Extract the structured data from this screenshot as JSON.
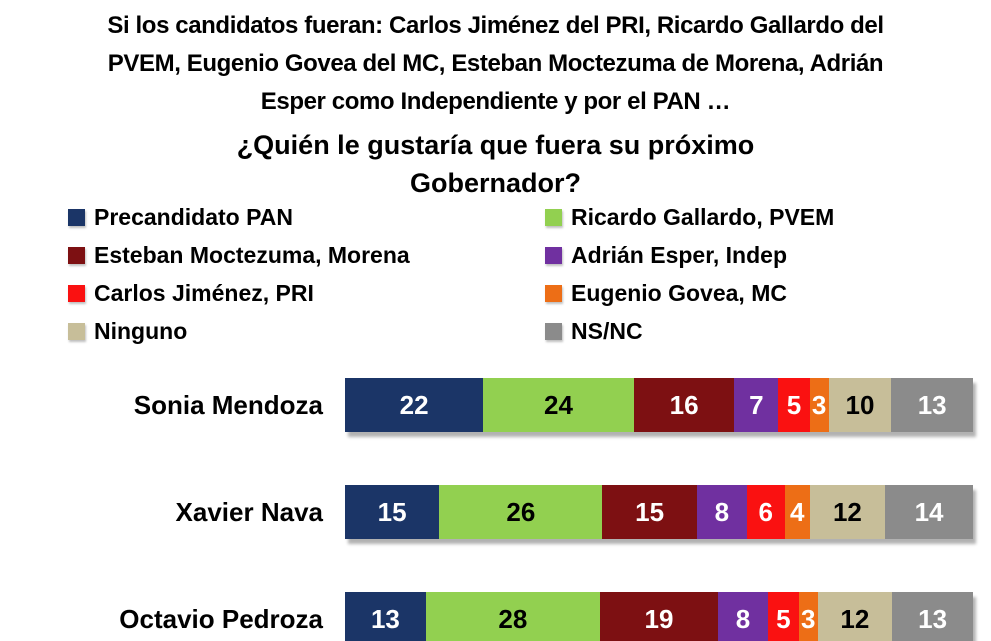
{
  "title": {
    "lines": [
      "Si los candidatos fueran: Carlos Jiménez del PRI, Ricardo Gallardo del",
      "PVEM, Eugenio Govea del MC, Esteban Moctezuma de Morena, Adrián",
      "Esper como Independiente y por el PAN …"
    ]
  },
  "question": {
    "lines": [
      "¿Quién le gustaría que fuera su próximo",
      "Gobernador?"
    ]
  },
  "chart_data": {
    "type": "bar",
    "orientation": "horizontal",
    "stacked": true,
    "title": "¿Quién le gustaría que fuera su próximo Gobernador?",
    "categories": [
      "Sonia Mendoza",
      "Xavier Nava",
      "Octavio Pedroza"
    ],
    "series": [
      {
        "name": "Precandidato PAN",
        "color": "#1B3567",
        "value_text_color": "#FFFFFF",
        "values": [
          22,
          15,
          13
        ]
      },
      {
        "name": "Ricardo Gallardo, PVEM",
        "color": "#92D050",
        "value_text_color": "#000000",
        "values": [
          24,
          26,
          28
        ]
      },
      {
        "name": "Esteban Moctezuma, Morena",
        "color": "#7D1012",
        "value_text_color": "#FFFFFF",
        "values": [
          16,
          15,
          19
        ]
      },
      {
        "name": "Adrián Esper, Indep",
        "color": "#7030A0",
        "value_text_color": "#FFFFFF",
        "values": [
          7,
          8,
          8
        ]
      },
      {
        "name": "Carlos Jiménez, PRI",
        "color": "#FA1111",
        "value_text_color": "#FFFFFF",
        "values": [
          5,
          6,
          5
        ]
      },
      {
        "name": "Eugenio Govea, MC",
        "color": "#ED6E16",
        "value_text_color": "#FFFFFF",
        "values": [
          3,
          4,
          3
        ]
      },
      {
        "name": "Ninguno",
        "color": "#C7BE99",
        "value_text_color": "#000000",
        "values": [
          10,
          12,
          12
        ]
      },
      {
        "name": "NS/NC",
        "color": "#8B8B8B",
        "value_text_color": "#FFFFFF",
        "values": [
          13,
          14,
          13
        ]
      }
    ],
    "x_range": [
      0,
      100
    ],
    "grid": false,
    "legend_position": "top, two columns",
    "value_labels": "inside segments"
  }
}
